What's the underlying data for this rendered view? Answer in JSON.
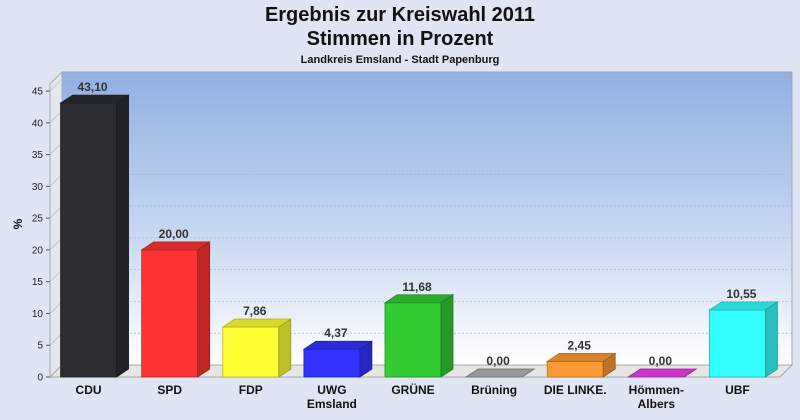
{
  "title": "Ergebnis zur Kreiswahl 2011",
  "subtitle": "Stimmen in Prozent",
  "subtitle2": "Landkreis Emsland - Stadt Papenburg",
  "chart_data": {
    "type": "bar",
    "title": "Ergebnis zur Kreiswahl 2011",
    "subtitle": "Stimmen in Prozent",
    "xlabel": "",
    "ylabel": "%",
    "ylim": [
      0,
      48
    ],
    "yticks": [
      0,
      5,
      10,
      15,
      20,
      25,
      30,
      35,
      40,
      45
    ],
    "grid": true,
    "categories": [
      [
        "CDU"
      ],
      [
        "SPD"
      ],
      [
        "FDP"
      ],
      [
        "UWG",
        "Emsland"
      ],
      [
        "GRÜNE"
      ],
      [
        "Brüning"
      ],
      [
        "DIE LINKE."
      ],
      [
        "Hömmen-",
        "Albers"
      ],
      [
        "UBF"
      ]
    ],
    "values": [
      43.1,
      20.0,
      7.86,
      4.37,
      11.68,
      0.0,
      2.45,
      0.0,
      10.55
    ],
    "value_labels": [
      "43,10",
      "20,00",
      "7,86",
      "4,37",
      "11,68",
      "0,00",
      "2,45",
      "0,00",
      "10,55"
    ],
    "colors": [
      "#2c2d33",
      "#ff3333",
      "#ffff33",
      "#3333ff",
      "#33cc33",
      "#999999",
      "#ff9933",
      "#cc33cc",
      "#33ffff"
    ]
  }
}
